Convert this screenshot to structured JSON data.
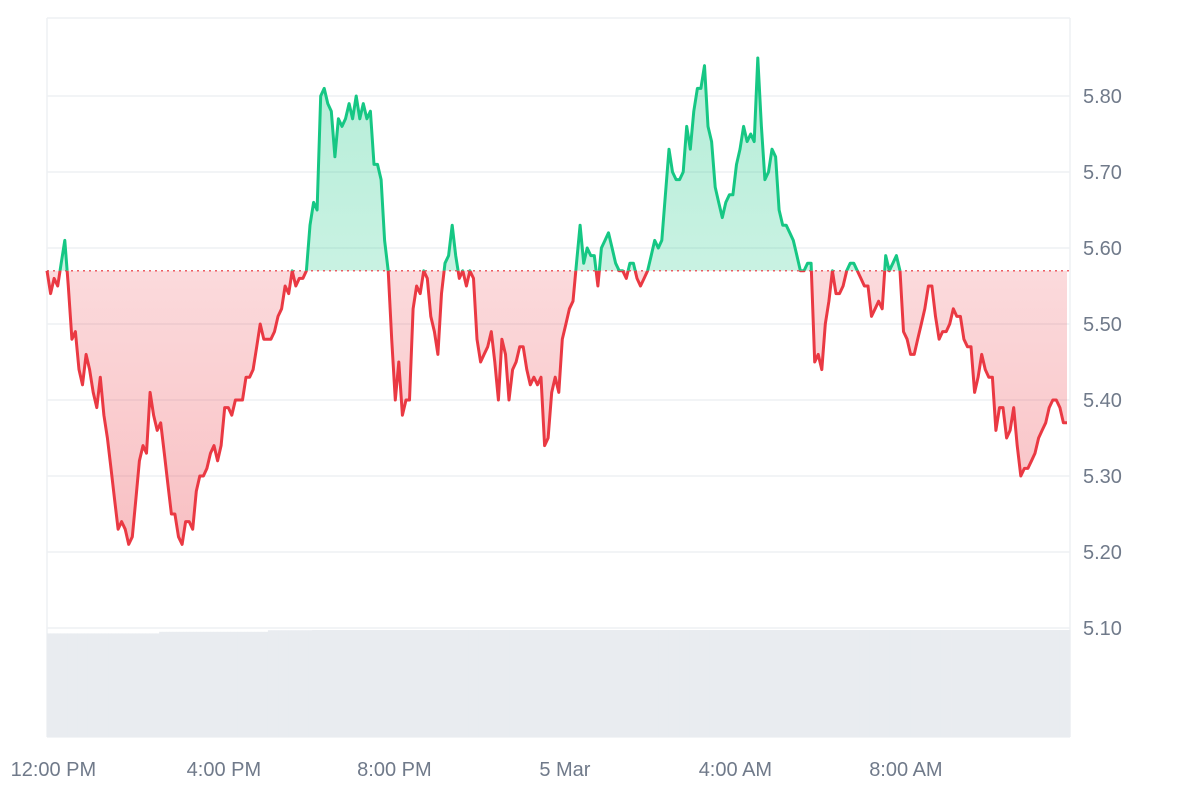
{
  "chart_data": {
    "type": "line",
    "title": "",
    "xlabel": "",
    "ylabel": "",
    "baseline": 5.57,
    "ylim": [
      5.0,
      5.9
    ],
    "grid": true,
    "legend": "none",
    "colors": {
      "above": "#16c784",
      "below": "#ea3943",
      "above_fill": "#16c784",
      "below_fill": "#ea3943",
      "grid": "#eef0f3",
      "volume": "#e9ecf0",
      "baseline": "#ea3943"
    },
    "y_ticks": [
      "5.10",
      "5.20",
      "5.30",
      "5.40",
      "5.50",
      "5.60",
      "5.70",
      "5.80"
    ],
    "x_ticks": [
      {
        "label": "12:00 PM",
        "hour": 12
      },
      {
        "label": "4:00 PM",
        "hour": 16
      },
      {
        "label": "8:00 PM",
        "hour": 20
      },
      {
        "label": "5 Mar",
        "hour": 24
      },
      {
        "label": "4:00 AM",
        "hour": 28
      },
      {
        "label": "8:00 AM",
        "hour": 32
      }
    ],
    "x_start_hour": 11.85,
    "x_end_hour": 35.85,
    "series": [
      {
        "values": [
          5.57,
          5.54,
          5.56,
          5.55,
          5.58,
          5.61,
          5.55,
          5.48,
          5.49,
          5.44,
          5.42,
          5.46,
          5.44,
          5.41,
          5.39,
          5.43,
          5.38,
          5.35,
          5.31,
          5.27,
          5.23,
          5.24,
          5.23,
          5.21,
          5.22,
          5.27,
          5.32,
          5.34,
          5.33,
          5.41,
          5.38,
          5.36,
          5.37,
          5.33,
          5.29,
          5.25,
          5.25,
          5.22,
          5.21,
          5.24,
          5.24,
          5.23,
          5.28,
          5.3,
          5.3,
          5.31,
          5.33,
          5.34,
          5.32,
          5.34,
          5.39,
          5.39,
          5.38,
          5.4,
          5.4,
          5.4,
          5.43,
          5.43,
          5.44,
          5.47,
          5.5,
          5.48,
          5.48,
          5.48,
          5.49,
          5.51,
          5.52,
          5.55,
          5.54,
          5.57,
          5.55,
          5.56,
          5.56,
          5.57,
          5.63,
          5.66,
          5.65,
          5.8,
          5.81,
          5.79,
          5.78,
          5.72,
          5.77,
          5.76,
          5.77,
          5.79,
          5.77,
          5.8,
          5.77,
          5.79,
          5.77,
          5.78,
          5.71,
          5.71,
          5.69,
          5.61,
          5.57,
          5.48,
          5.4,
          5.45,
          5.38,
          5.4,
          5.4,
          5.52,
          5.55,
          5.54,
          5.57,
          5.56,
          5.51,
          5.49,
          5.46,
          5.54,
          5.58,
          5.59,
          5.63,
          5.59,
          5.56,
          5.57,
          5.55,
          5.57,
          5.56,
          5.48,
          5.45,
          5.46,
          5.47,
          5.49,
          5.45,
          5.4,
          5.48,
          5.46,
          5.4,
          5.44,
          5.45,
          5.47,
          5.47,
          5.44,
          5.42,
          5.43,
          5.42,
          5.43,
          5.34,
          5.35,
          5.41,
          5.43,
          5.41,
          5.48,
          5.5,
          5.52,
          5.53,
          5.58,
          5.63,
          5.58,
          5.6,
          5.59,
          5.59,
          5.55,
          5.6,
          5.61,
          5.62,
          5.6,
          5.58,
          5.57,
          5.57,
          5.56,
          5.58,
          5.58,
          5.56,
          5.55,
          5.56,
          5.57,
          5.59,
          5.61,
          5.6,
          5.61,
          5.67,
          5.73,
          5.7,
          5.69,
          5.69,
          5.7,
          5.76,
          5.73,
          5.78,
          5.81,
          5.81,
          5.84,
          5.76,
          5.74,
          5.68,
          5.66,
          5.64,
          5.66,
          5.67,
          5.67,
          5.71,
          5.73,
          5.76,
          5.74,
          5.75,
          5.74,
          5.85,
          5.76,
          5.69,
          5.7,
          5.73,
          5.72,
          5.65,
          5.63,
          5.63,
          5.62,
          5.61,
          5.59,
          5.57,
          5.57,
          5.58,
          5.58,
          5.45,
          5.46,
          5.44,
          5.5,
          5.53,
          5.57,
          5.54,
          5.54,
          5.55,
          5.57,
          5.58,
          5.58,
          5.57,
          5.56,
          5.55,
          5.55,
          5.51,
          5.52,
          5.53,
          5.52,
          5.59,
          5.57,
          5.58,
          5.59,
          5.57,
          5.49,
          5.48,
          5.46,
          5.46,
          5.48,
          5.5,
          5.52,
          5.55,
          5.55,
          5.51,
          5.48,
          5.49,
          5.49,
          5.5,
          5.52,
          5.51,
          5.51,
          5.48,
          5.47,
          5.47,
          5.41,
          5.43,
          5.46,
          5.44,
          5.43,
          5.43,
          5.36,
          5.39,
          5.39,
          5.35,
          5.36,
          5.39,
          5.34,
          5.3,
          5.31,
          5.31,
          5.32,
          5.33,
          5.35,
          5.36,
          5.37,
          5.39,
          5.4,
          5.4,
          5.39,
          5.37,
          5.37
        ]
      }
    ],
    "volume": {
      "values": [
        66,
        66,
        66,
        66,
        66,
        66,
        66,
        66,
        66,
        66,
        66,
        66,
        66,
        66,
        66,
        66,
        66,
        66,
        66,
        66,
        66,
        66,
        66,
        66,
        66,
        66,
        66,
        66,
        66,
        66,
        66,
        66,
        66,
        67,
        67,
        67,
        67,
        67,
        67,
        67,
        67,
        67,
        67,
        67,
        67,
        67,
        67,
        67,
        67,
        67,
        67,
        67,
        67,
        67,
        67,
        67,
        67,
        67,
        67,
        67,
        67,
        67,
        67,
        67,
        67,
        68,
        68,
        68,
        68,
        68,
        68,
        68,
        68,
        68,
        68,
        68,
        68,
        68,
        69,
        69,
        69,
        69,
        69,
        69,
        69,
        69,
        69,
        69,
        69,
        70,
        70,
        70,
        70,
        70,
        70,
        70,
        70,
        70,
        70,
        70,
        70,
        70,
        70,
        70,
        70,
        70,
        70,
        70,
        70,
        70,
        70,
        70,
        70,
        70,
        70,
        71,
        71,
        71,
        71,
        71,
        70,
        70,
        70,
        70,
        70,
        70,
        70,
        70,
        70,
        70,
        70,
        70,
        70,
        70,
        70,
        70,
        70,
        70,
        69,
        69,
        69,
        69,
        69,
        69,
        69,
        69,
        69,
        69,
        69,
        69,
        69,
        69,
        69,
        69,
        69,
        69,
        69,
        69,
        69,
        69,
        70,
        70,
        70,
        70,
        70,
        70,
        70,
        70,
        70,
        70,
        70,
        71,
        71,
        71,
        71,
        71,
        71,
        71,
        71,
        71,
        71,
        71,
        71,
        71,
        71,
        71,
        71,
        71,
        71,
        71,
        72,
        72,
        72,
        72,
        72,
        73,
        73,
        73,
        73,
        73,
        73,
        73,
        73,
        73,
        74,
        74,
        74,
        74,
        74,
        74,
        74,
        74,
        74,
        74,
        74,
        74,
        74,
        74,
        74,
        74,
        74,
        74,
        74,
        74,
        74,
        74,
        74,
        74,
        74,
        74,
        74,
        74,
        74,
        74,
        74,
        74,
        75,
        75,
        75,
        75,
        75,
        75,
        75,
        75,
        75,
        75,
        75,
        75,
        75,
        75,
        75,
        75,
        76,
        76,
        76,
        76,
        76,
        76,
        76,
        76,
        76,
        76,
        76,
        76,
        76,
        76,
        76,
        76,
        76,
        76,
        76,
        76,
        76,
        76,
        76,
        76,
        76,
        76,
        75,
        75,
        75,
        75,
        75,
        75,
        75,
        75,
        75,
        75,
        75,
        75,
        75,
        75,
        74,
        74,
        74,
        74,
        74,
        74,
        73,
        73,
        72
      ],
      "max": 100
    }
  }
}
